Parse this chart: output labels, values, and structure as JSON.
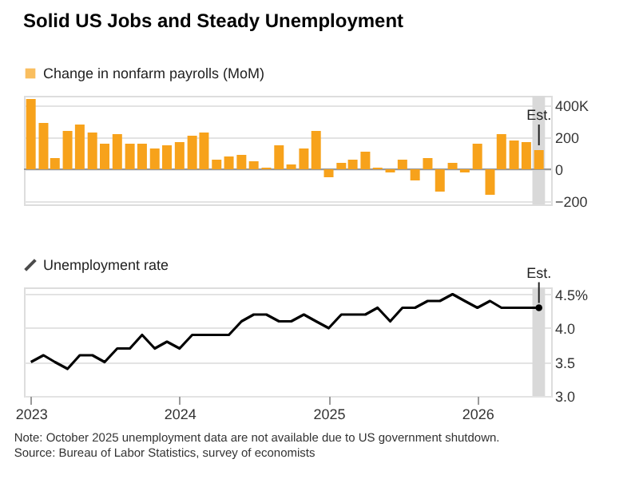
{
  "chart_data": [
    {
      "type": "bar",
      "title": "Solid US Jobs and Steady Unemployment",
      "x": [
        "2023-01",
        "2023-02",
        "2023-03",
        "2023-04",
        "2023-05",
        "2023-06",
        "2023-07",
        "2023-08",
        "2023-09",
        "2023-10",
        "2023-11",
        "2023-12",
        "2024-01",
        "2024-02",
        "2024-03",
        "2024-04",
        "2024-05",
        "2024-06",
        "2024-07",
        "2024-08",
        "2024-09",
        "2024-10",
        "2024-11",
        "2024-12",
        "2025-01",
        "2025-02",
        "2025-03",
        "2025-04",
        "2025-05",
        "2025-06",
        "2025-07",
        "2025-08",
        "2025-09",
        "2025-10",
        "2025-11",
        "2025-12",
        "2026-01",
        "2026-02",
        "2026-03",
        "2026-04",
        "2026-05",
        "2026-06"
      ],
      "series": [
        {
          "name": "Change in nonfarm payrolls (MoM)",
          "color": "#f7a21b",
          "values": [
            440,
            290,
            70,
            240,
            280,
            230,
            160,
            220,
            160,
            160,
            130,
            150,
            170,
            210,
            230,
            60,
            80,
            90,
            50,
            10,
            150,
            30,
            130,
            240,
            -50,
            40,
            60,
            110,
            10,
            -20,
            60,
            -70,
            70,
            -140,
            40,
            -20,
            160,
            -160,
            220,
            180,
            170,
            120
          ]
        }
      ],
      "xlim": [
        "2022-12-15",
        "2026-07-01"
      ],
      "xticks": [
        "2023",
        "2024",
        "2025",
        "2026"
      ],
      "ylim": [
        -220,
        460
      ],
      "ref_lines": [
        {
          "axis": "y",
          "value": 0,
          "color": "#999999"
        }
      ],
      "yticks": [
        {
          "value": 400,
          "label": "400K"
        },
        200,
        0,
        -200
      ],
      "grid": "y",
      "legend": "top left",
      "tick_labels": "y",
      "bands": [
        {
          "axis": "x",
          "from": "2026-05-16",
          "to": "2026-06-16",
          "color": "#d9d9d9"
        }
      ],
      "annotations": [
        {
          "text": "Est.",
          "x": "2026-06",
          "y": 120
        }
      ]
    },
    {
      "type": "line",
      "x": [
        "2023-01",
        "2023-02",
        "2023-03",
        "2023-04",
        "2023-05",
        "2023-06",
        "2023-07",
        "2023-08",
        "2023-09",
        "2023-10",
        "2023-11",
        "2023-12",
        "2024-01",
        "2024-02",
        "2024-03",
        "2024-04",
        "2024-05",
        "2024-06",
        "2024-07",
        "2024-08",
        "2024-09",
        "2024-10",
        "2024-11",
        "2024-12",
        "2025-01",
        "2025-02",
        "2025-03",
        "2025-04",
        "2025-05",
        "2025-06",
        "2025-07",
        "2025-08",
        "2025-09",
        "2025-10",
        "2025-11",
        "2025-12",
        "2026-01",
        "2026-02",
        "2026-03",
        "2026-04",
        "2026-05",
        "2026-06"
      ],
      "series": [
        {
          "name": "Unemployment rate",
          "color": "#000000",
          "values": [
            3.5,
            3.6,
            3.5,
            3.4,
            3.6,
            3.6,
            3.5,
            3.7,
            3.7,
            3.9,
            3.7,
            3.8,
            3.7,
            3.9,
            3.9,
            3.9,
            3.9,
            4.1,
            4.2,
            4.2,
            4.1,
            4.1,
            4.2,
            4.1,
            4.0,
            4.2,
            4.2,
            4.2,
            4.3,
            4.1,
            4.3,
            4.3,
            4.4,
            4.4,
            4.5,
            4.4,
            4.3,
            4.4,
            4.3,
            4.3,
            4.3,
            4.3
          ]
        }
      ],
      "xlim": [
        "2022-12-15",
        "2026-07-01"
      ],
      "xticks": [
        "2023",
        "2024",
        "2025",
        "2026"
      ],
      "ylim": [
        3.0,
        4.6
      ],
      "yticks": [
        {
          "value": 4.5,
          "label": "4.5%"
        },
        {
          "value": 4.0,
          "label": "4.0"
        },
        {
          "value": 3.5,
          "label": "3.5"
        },
        {
          "value": 3.0,
          "label": "3.0"
        }
      ],
      "grid": "y",
      "legend": "top left",
      "line_style": "solid",
      "bands": [
        {
          "axis": "x",
          "from": "2026-05-16",
          "to": "2026-06-16",
          "color": "#d9d9d9"
        }
      ],
      "annotations": [
        {
          "text": "Est.",
          "x": "2026-06",
          "y": 4.3
        },
        "Note: October 2025 unemployment data are not available due to US government shutdown.",
        "Source: Bureau of Labor Statistics, survey of economists"
      ]
    }
  ]
}
